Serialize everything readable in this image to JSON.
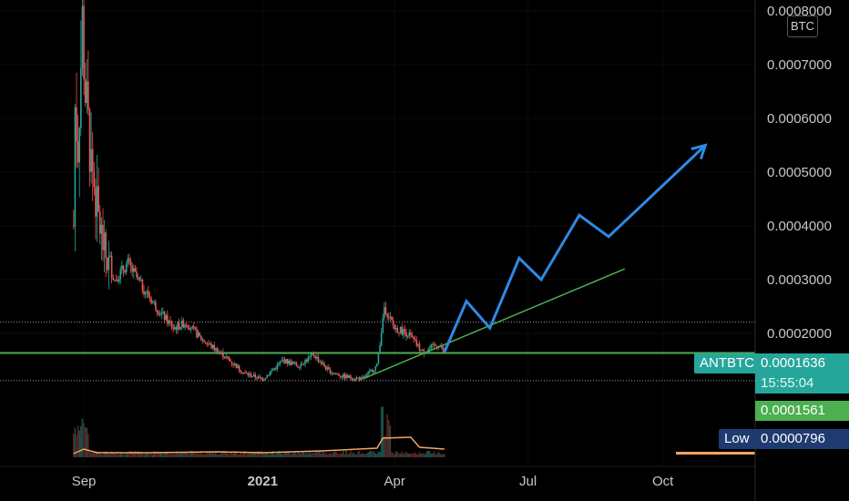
{
  "chart_data": {
    "type": "candlestick",
    "symbol": "ANTBTC",
    "unit": "BTC",
    "y_axis_ticks": [
      "0.0002000",
      "0.0003000",
      "0.0004000",
      "0.0005000",
      "0.0006000",
      "0.0007000",
      "0.0008000"
    ],
    "x_axis_ticks": [
      {
        "label": "Sep",
        "bold": false
      },
      {
        "label": "2021",
        "bold": true
      },
      {
        "label": "Apr",
        "bold": false
      },
      {
        "label": "Jul",
        "bold": false
      },
      {
        "label": "Oct",
        "bold": false
      }
    ],
    "ylim": [
      7e-05,
      0.0008
    ],
    "price_series": [
      {
        "date": "2020-08-25",
        "close": 0.0004
      },
      {
        "date": "2020-08-26",
        "close": 0.00062
      },
      {
        "date": "2020-08-28",
        "close": 0.00055
      },
      {
        "date": "2020-08-31",
        "close": 0.00078
      },
      {
        "date": "2020-09-02",
        "close": 0.00065
      },
      {
        "date": "2020-09-05",
        "close": 0.00055
      },
      {
        "date": "2020-09-10",
        "close": 0.00043
      },
      {
        "date": "2020-09-15",
        "close": 0.00035
      },
      {
        "date": "2020-09-22",
        "close": 0.0003
      },
      {
        "date": "2020-10-01",
        "close": 0.00033
      },
      {
        "date": "2020-10-10",
        "close": 0.00029
      },
      {
        "date": "2020-10-20",
        "close": 0.00025
      },
      {
        "date": "2020-11-01",
        "close": 0.00021
      },
      {
        "date": "2020-11-10",
        "close": 0.00022
      },
      {
        "date": "2020-11-20",
        "close": 0.00019
      },
      {
        "date": "2020-12-05",
        "close": 0.00016
      },
      {
        "date": "2020-12-20",
        "close": 0.000125
      },
      {
        "date": "2021-01-01",
        "close": 0.000115
      },
      {
        "date": "2021-01-15",
        "close": 0.00015
      },
      {
        "date": "2021-01-25",
        "close": 0.00014
      },
      {
        "date": "2021-02-05",
        "close": 0.00016
      },
      {
        "date": "2021-02-15",
        "close": 0.00013
      },
      {
        "date": "2021-02-25",
        "close": 0.00012
      },
      {
        "date": "2021-03-10",
        "close": 0.000115
      },
      {
        "date": "2021-03-20",
        "close": 0.00014
      },
      {
        "date": "2021-03-25",
        "close": 0.00025
      },
      {
        "date": "2021-04-01",
        "close": 0.00021
      },
      {
        "date": "2021-04-10",
        "close": 0.0002
      },
      {
        "date": "2021-04-20",
        "close": 0.000165
      },
      {
        "date": "2021-05-01",
        "close": 0.00018
      },
      {
        "date": "2021-05-05",
        "close": 0.0001636
      }
    ],
    "projection_path": [
      {
        "date": "2021-05-05",
        "price": 0.000165
      },
      {
        "date": "2021-05-20",
        "price": 0.00026
      },
      {
        "date": "2021-06-05",
        "price": 0.00021
      },
      {
        "date": "2021-06-25",
        "price": 0.00034
      },
      {
        "date": "2021-07-10",
        "price": 0.0003
      },
      {
        "date": "2021-08-05",
        "price": 0.00042
      },
      {
        "date": "2021-08-25",
        "price": 0.00038
      },
      {
        "date": "2021-10-30",
        "price": 0.00055
      }
    ],
    "trendline": [
      {
        "date": "2021-03-10",
        "price": 0.000115
      },
      {
        "date": "2021-09-05",
        "price": 0.00032
      }
    ],
    "horizontal_levels": [
      {
        "price": 0.0001636,
        "style": "solid",
        "color": "#4caf50"
      },
      {
        "price": 0.000221,
        "style": "dotted",
        "color": "#9e9e9e"
      },
      {
        "price": 0.000112,
        "style": "dotted",
        "color": "#9e9e9e"
      }
    ],
    "price_labels": {
      "symbol_label": "ANTBTC",
      "current_price": "0.0001636",
      "countdown": "15:55:04",
      "secondary_price": "0.0001561",
      "low_label": "Low",
      "low_value": "0.0000796"
    },
    "colors": {
      "up": "#26a69a",
      "down": "#ef5350",
      "projection": "#2e8ae6",
      "trendline": "#4caf50",
      "indicator": "#f4a460",
      "badge_current": "#26a69a",
      "badge_secondary": "#4caf50",
      "badge_low": "#1e3a6e"
    }
  }
}
